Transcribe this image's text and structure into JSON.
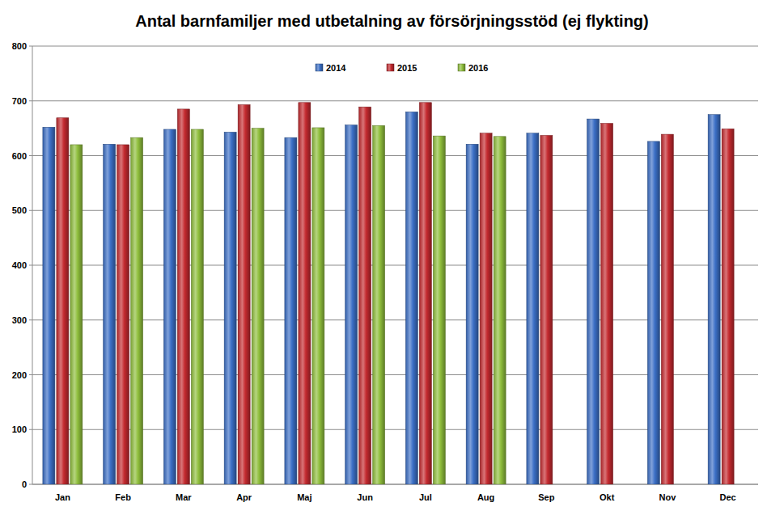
{
  "chart_data": {
    "type": "bar",
    "title": "Antal barnfamiljer med utbetalning av försörjningsstöd (ej flykting)",
    "categories": [
      "Jan",
      "Feb",
      "Mar",
      "Apr",
      "Maj",
      "Jun",
      "Jul",
      "Aug",
      "Sep",
      "Okt",
      "Nov",
      "Dec"
    ],
    "series": [
      {
        "name": "2014",
        "color": "#3b6fc6",
        "values": [
          652,
          621,
          648,
          643,
          633,
          656,
          680,
          621,
          641,
          667,
          626,
          675
        ]
      },
      {
        "name": "2015",
        "color": "#c42a2f",
        "values": [
          669,
          620,
          685,
          693,
          697,
          689,
          697,
          641,
          637,
          659,
          639,
          649
        ]
      },
      {
        "name": "2016",
        "color": "#8fbe3c",
        "values": [
          620,
          633,
          648,
          650,
          651,
          655,
          636,
          635,
          null,
          null,
          null,
          null
        ]
      }
    ],
    "ylim": [
      0,
      800
    ],
    "yticks": [
      0,
      100,
      200,
      300,
      400,
      500,
      600,
      700,
      800
    ],
    "grid": true,
    "legend": "top"
  }
}
